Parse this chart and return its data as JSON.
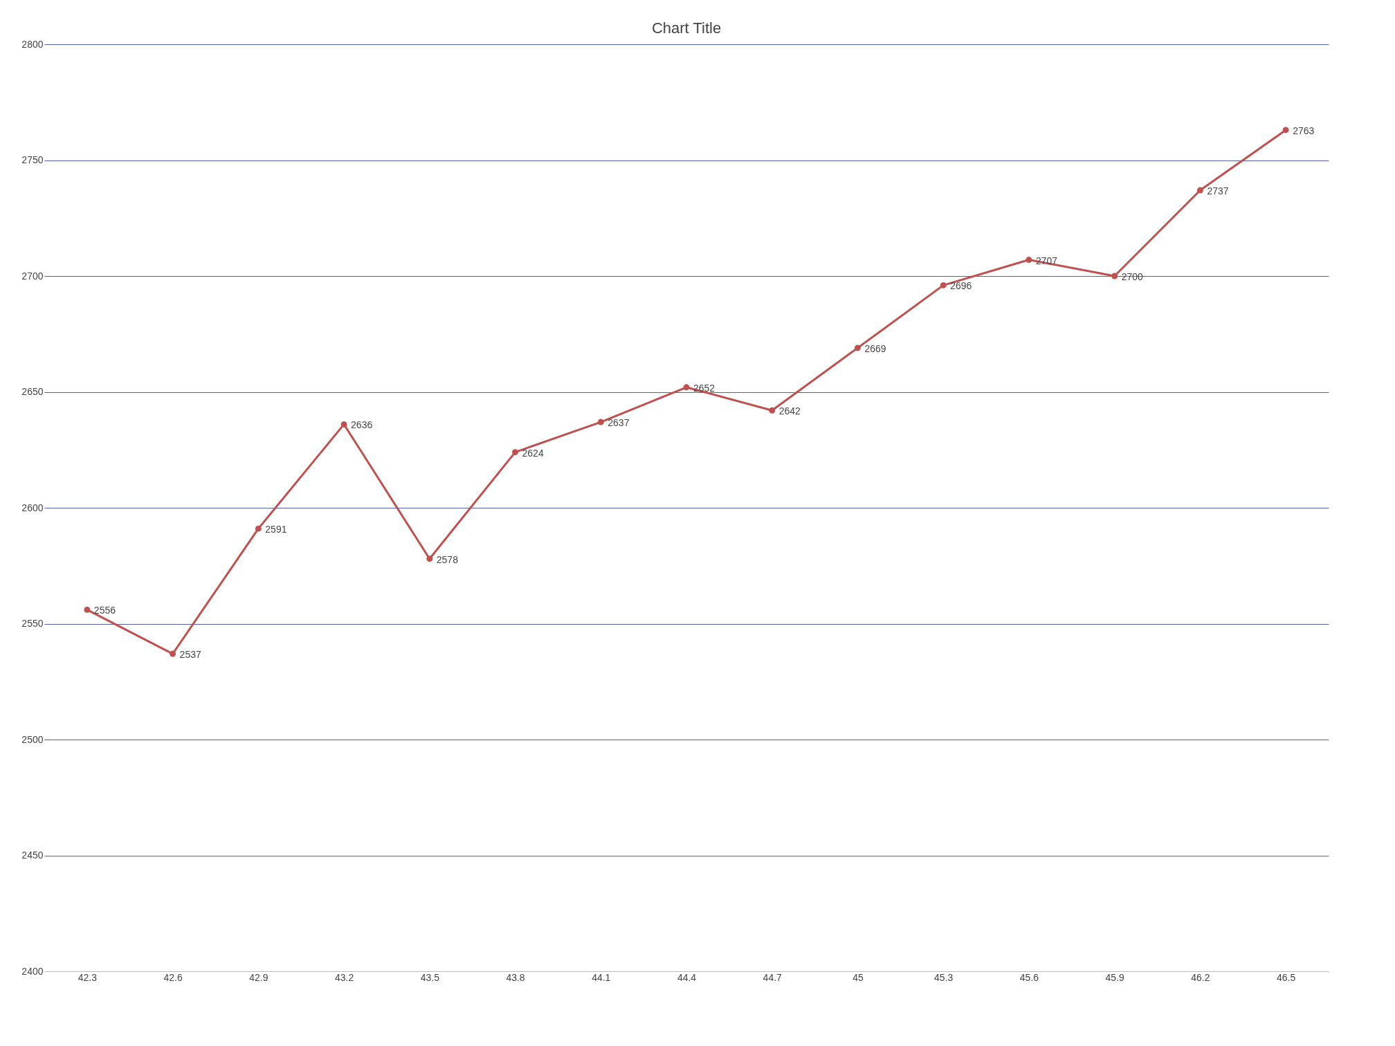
{
  "chart_data": {
    "type": "line",
    "title": "Chart Title",
    "categories": [
      "42.3",
      "42.6",
      "42.9",
      "43.2",
      "43.5",
      "43.8",
      "44.1",
      "44.4",
      "44.7",
      "45",
      "45.3",
      "45.6",
      "45.9",
      "46.2",
      "46.5"
    ],
    "series": [
      {
        "color": "#c0504d",
        "values": [
          2556,
          2537,
          2591,
          2636,
          2578,
          2624,
          2637,
          2652,
          2642,
          2669,
          2696,
          2707,
          2700,
          2737,
          2763
        ]
      }
    ],
    "ylim": [
      2400,
      2800
    ],
    "yticks": [
      2400,
      2450,
      2500,
      2550,
      2600,
      2650,
      2700,
      2750,
      2800
    ],
    "grid": "y",
    "data_labels": true,
    "marker": "circle",
    "line_style": "solid"
  }
}
